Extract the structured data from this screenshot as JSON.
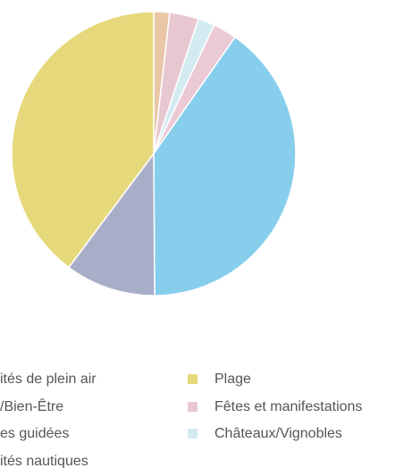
{
  "chart_data": {
    "type": "pie",
    "series": [
      {
        "name": "/Bien-Être",
        "color": "#e8c6a6",
        "values": [
          1.8
        ]
      },
      {
        "name": "Fêtes et manifestations",
        "color": "#e8c8d0",
        "values": [
          3.3
        ]
      },
      {
        "name": "Châteaux/Vignobles",
        "color": "#d3ebf0",
        "values": [
          1.9
        ]
      },
      {
        "name": "ités de plein air",
        "color": "#ebc9d5",
        "values": [
          2.7
        ]
      },
      {
        "name": "ités nautiques",
        "color": "#87ceec",
        "values": [
          40.2
        ]
      },
      {
        "name": "es guidées",
        "color": "#a9aec8",
        "values": [
          10.3
        ]
      },
      {
        "name": "Plage",
        "color": "#e6d97c",
        "values": [
          39.8
        ]
      }
    ]
  }
}
